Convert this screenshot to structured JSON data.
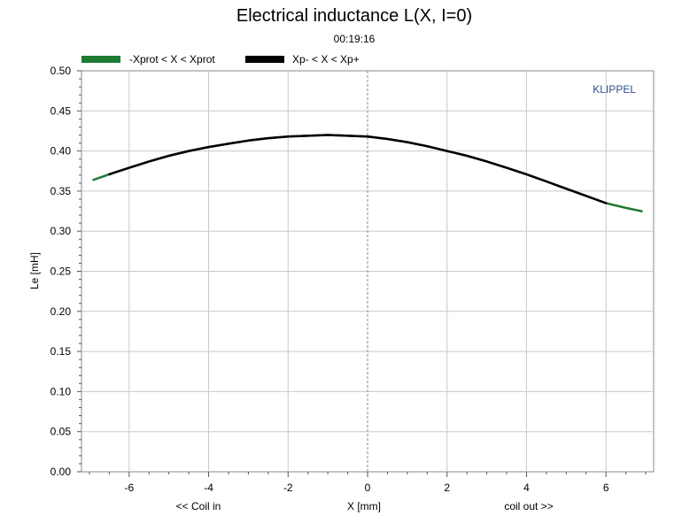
{
  "chart_data": {
    "type": "line",
    "title": "Electrical inductance L(X, I=0)",
    "subtitle": "00:19:16",
    "watermark": "KLIPPEL",
    "xlabel": "X [mm]",
    "xlabel_left": "<< Coil in",
    "xlabel_right": "coil out >>",
    "ylabel": "Le [mH]",
    "xlim": [
      -7.2,
      7.2
    ],
    "ylim": [
      0,
      0.5
    ],
    "xticks": [
      -6,
      -4,
      -2,
      0,
      2,
      4,
      6
    ],
    "xtick_labels": [
      "-6",
      "-4",
      "-2",
      "0",
      "2",
      "4",
      "6"
    ],
    "yticks": [
      0,
      0.05,
      0.1,
      0.15,
      0.2,
      0.25,
      0.3,
      0.35,
      0.4,
      0.45,
      0.5
    ],
    "ytick_labels": [
      "0.00",
      "0.05",
      "0.10",
      "0.15",
      "0.20",
      "0.25",
      "0.30",
      "0.35",
      "0.40",
      "0.45",
      "0.50"
    ],
    "grid": true,
    "legend_position": "top-left",
    "series": [
      {
        "name": "-Xprot < X < Xprot",
        "color": "#1e7b34",
        "x": [
          -6.9,
          -6.5,
          -6.0,
          -5.5,
          -5.0,
          -4.5,
          -4.0,
          -3.5,
          -3.0,
          -2.5,
          -2.0,
          -1.5,
          -1.0,
          -0.5,
          0.0,
          0.5,
          1.0,
          1.5,
          2.0,
          2.5,
          3.0,
          3.5,
          4.0,
          4.5,
          5.0,
          5.5,
          6.0,
          6.5,
          6.9
        ],
        "y": [
          0.364,
          0.371,
          0.379,
          0.387,
          0.394,
          0.4,
          0.405,
          0.409,
          0.413,
          0.416,
          0.418,
          0.419,
          0.42,
          0.419,
          0.418,
          0.415,
          0.411,
          0.406,
          0.4,
          0.394,
          0.387,
          0.379,
          0.371,
          0.362,
          0.353,
          0.344,
          0.335,
          0.329,
          0.325
        ]
      },
      {
        "name": "Xp- < X < Xp+",
        "color": "#000000",
        "x": [
          -6.5,
          -6.0,
          -5.5,
          -5.0,
          -4.5,
          -4.0,
          -3.5,
          -3.0,
          -2.5,
          -2.0,
          -1.5,
          -1.0,
          -0.5,
          0.0,
          0.5,
          1.0,
          1.5,
          2.0,
          2.5,
          3.0,
          3.5,
          4.0,
          4.5,
          5.0,
          5.5,
          6.0
        ],
        "y": [
          0.371,
          0.379,
          0.387,
          0.394,
          0.4,
          0.405,
          0.409,
          0.413,
          0.416,
          0.418,
          0.419,
          0.42,
          0.419,
          0.418,
          0.415,
          0.411,
          0.406,
          0.4,
          0.394,
          0.387,
          0.379,
          0.371,
          0.362,
          0.353,
          0.344,
          0.335
        ]
      }
    ]
  }
}
